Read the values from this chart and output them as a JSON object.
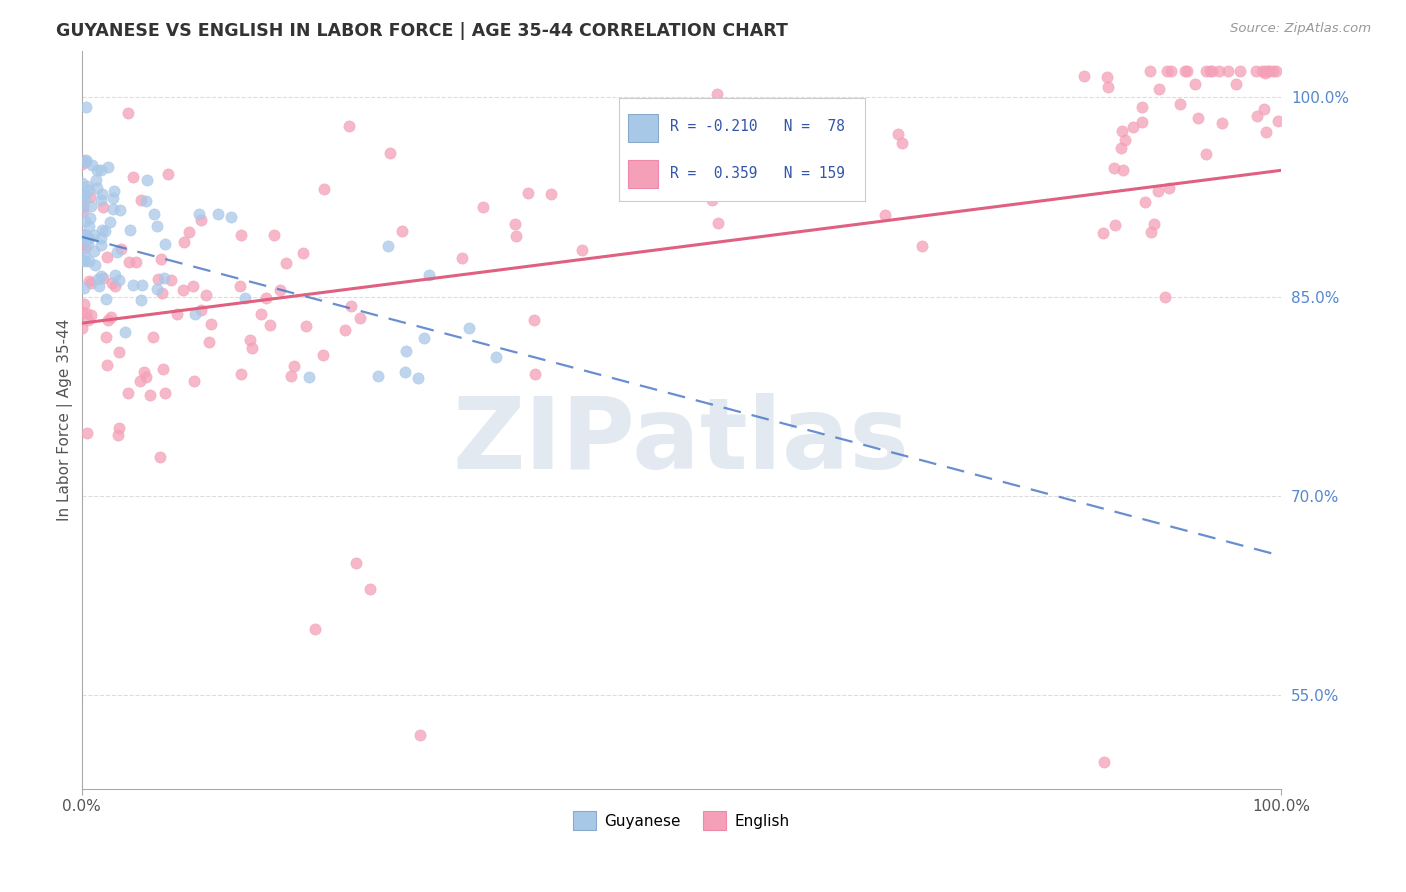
{
  "title": "GUYANESE VS ENGLISH IN LABOR FORCE | AGE 35-44 CORRELATION CHART",
  "source": "Source: ZipAtlas.com",
  "ylabel": "In Labor Force | Age 35-44",
  "xlim": [
    0.0,
    1.0
  ],
  "ylim": [
    0.48,
    1.035
  ],
  "yticks": [
    0.55,
    0.7,
    0.85,
    1.0
  ],
  "ytick_labels": [
    "55.0%",
    "70.0%",
    "85.0%",
    "100.0%"
  ],
  "background_color": "#ffffff",
  "blue_color": "#A8C8E8",
  "pink_color": "#F4A0B8",
  "blue_line_color": "#4472C4",
  "pink_line_color": "#E06080",
  "grid_color": "#DDDDDD",
  "legend_text_color": "#3355AA",
  "right_tick_color": "#5588CC"
}
